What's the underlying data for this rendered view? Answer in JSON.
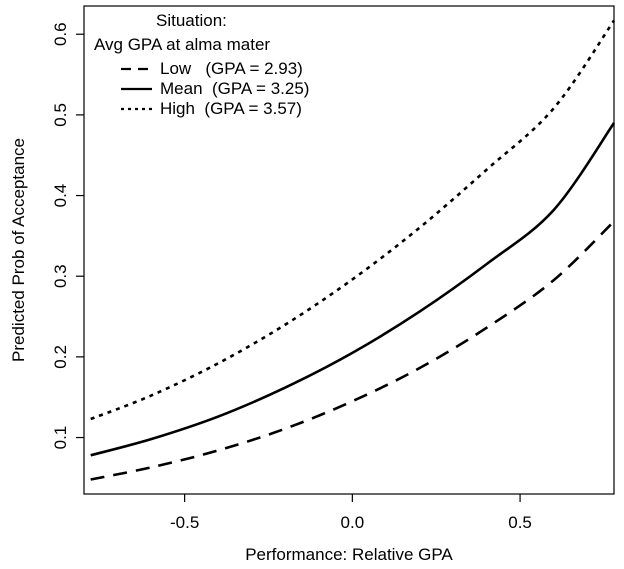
{
  "chart_data": {
    "type": "line",
    "xlabel": "Performance: Relative GPA",
    "ylabel": "Predicted Prob of Acceptance",
    "xlim": [
      -0.8,
      0.78
    ],
    "ylim": [
      0.03,
      0.635
    ],
    "xticks": [
      -0.5,
      0.0,
      0.5
    ],
    "xtick_labels": [
      "-0.5",
      "0.0",
      "0.5"
    ],
    "yticks": [
      0.1,
      0.2,
      0.3,
      0.4,
      0.5,
      0.6
    ],
    "ytick_labels": [
      "0.1",
      "0.2",
      "0.3",
      "0.4",
      "0.5",
      "0.6"
    ],
    "grid": false,
    "legend": {
      "position": "top-left",
      "title_line1": "Situation:",
      "title_line2": "Avg GPA at alma mater"
    },
    "series": [
      {
        "name": "Low   (GPA = 2.93)",
        "dash": "dashed",
        "x": [
          -0.78,
          -0.6,
          -0.4,
          -0.2,
          0.0,
          0.2,
          0.4,
          0.6,
          0.78
        ],
        "y": [
          0.048,
          0.063,
          0.084,
          0.111,
          0.145,
          0.186,
          0.236,
          0.295,
          0.368
        ]
      },
      {
        "name": "Mean  (GPA = 3.25)",
        "dash": "solid",
        "x": [
          -0.78,
          -0.6,
          -0.4,
          -0.2,
          0.0,
          0.2,
          0.4,
          0.6,
          0.78
        ],
        "y": [
          0.078,
          0.098,
          0.126,
          0.162,
          0.205,
          0.256,
          0.315,
          0.382,
          0.49
        ]
      },
      {
        "name": "High  (GPA = 3.57)",
        "dash": "dotted",
        "x": [
          -0.78,
          -0.6,
          -0.4,
          -0.2,
          0.0,
          0.2,
          0.4,
          0.6,
          0.78
        ],
        "y": [
          0.123,
          0.152,
          0.192,
          0.24,
          0.296,
          0.36,
          0.432,
          0.508,
          0.617
        ]
      }
    ]
  }
}
